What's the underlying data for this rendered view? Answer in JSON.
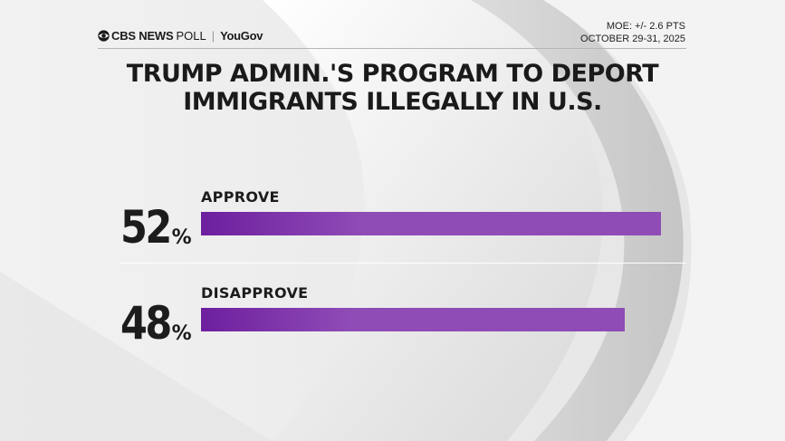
{
  "header": {
    "brand_cbs": "CBS NEWS",
    "brand_poll": "POLL",
    "brand_sep": "|",
    "brand_partner": "YouGov",
    "moe": "MOE: +/- 2.6 PTS",
    "dates": "OCTOBER 29-31, 2025"
  },
  "chart_data": {
    "type": "bar",
    "orientation": "horizontal",
    "title": "TRUMP ADMIN.'S PROGRAM TO DEPORT IMMIGRANTS ILLEGALLY IN U.S.",
    "categories": [
      "APPROVE",
      "DISAPPROVE"
    ],
    "values": [
      52,
      48
    ],
    "value_labels": [
      "52",
      "48"
    ],
    "unit": "%",
    "xlim": [
      0,
      100
    ],
    "bar_color": "#8f4bb6",
    "bar_color_start": "#6d1f9e",
    "legend": "none",
    "grid": false
  }
}
